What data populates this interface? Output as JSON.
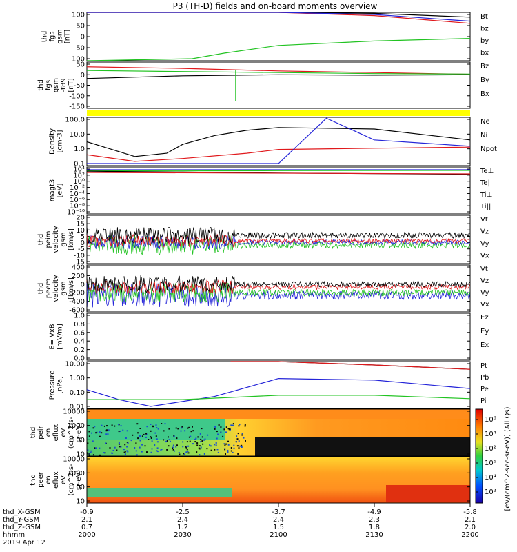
{
  "title": "P3 (TH-D) fields and on-board moments overview",
  "colors": {
    "black": "#000000",
    "red": "#e0191c",
    "green": "#22c322",
    "blue": "#2424d8",
    "magenta": "#b41e8c",
    "flag": "#ffff00",
    "panel_bg": "#ffffff"
  },
  "panels": [
    {
      "id": "fgs",
      "ylabel": [
        "thd",
        "fgs",
        "gsm",
        "[nT]"
      ],
      "ticks": [
        "100",
        "50",
        "0",
        "-50",
        "-100"
      ],
      "legend": [
        {
          "label": "Bt",
          "color": "black"
        },
        {
          "label": "bz",
          "color": "red"
        },
        {
          "label": "by",
          "color": "green"
        },
        {
          "label": "bx",
          "color": "blue"
        }
      ]
    },
    {
      "id": "fgs_t89",
      "ylabel": [
        "thd",
        "fgs",
        "gsm",
        "-t89",
        "[nT]"
      ],
      "ticks": [
        "50",
        "0",
        "-50",
        "-100",
        "-150"
      ],
      "legend": [
        {
          "label": "Bz",
          "color": "red"
        },
        {
          "label": "By",
          "color": "green"
        },
        {
          "label": "Bx",
          "color": "black"
        }
      ]
    },
    {
      "id": "density",
      "ylabel": [
        "Density",
        "[cm-3]"
      ],
      "ticks": [
        "100.0",
        "10.0",
        "1.0",
        "0.1"
      ],
      "legend": [
        {
          "label": "Ne",
          "color": "red"
        },
        {
          "label": "Ni",
          "color": "black"
        },
        {
          "label": "Npot",
          "color": "blue"
        }
      ]
    },
    {
      "id": "temperature",
      "ylabel": [
        "magt3",
        "[eV]"
      ],
      "ticks": [
        "10⁴",
        "10²",
        "10⁰",
        "10⁻²",
        "10⁻⁴",
        "10⁻⁶",
        "10⁻⁸",
        "10⁻¹⁰"
      ],
      "legend": [
        {
          "label": "Te⊥",
          "color": "red"
        },
        {
          "label": "Te||",
          "color": "black"
        },
        {
          "label": "Ti⊥",
          "color": "magenta"
        },
        {
          "label": "Ti||",
          "color": "green"
        }
      ]
    },
    {
      "id": "peim_velocity",
      "ylabel": [
        "thd",
        "peim",
        "velocity",
        "gsm",
        "[km/s]"
      ],
      "ticks": [
        "20",
        "15",
        "10",
        "5",
        "0",
        "-5",
        "-10",
        "-15"
      ],
      "legend": [
        {
          "label": "Vt",
          "color": "black"
        },
        {
          "label": "Vz",
          "color": "red"
        },
        {
          "label": "Vy",
          "color": "green"
        },
        {
          "label": "Vx",
          "color": "blue"
        }
      ]
    },
    {
      "id": "peem_velocity",
      "ylabel": [
        "thd",
        "peem",
        "velocity",
        "gsm",
        "[km/s]"
      ],
      "ticks": [
        "400",
        "200",
        "0",
        "-200",
        "-400",
        "-600"
      ],
      "legend": [
        {
          "label": "Vt",
          "color": "black"
        },
        {
          "label": "Vz",
          "color": "red"
        },
        {
          "label": "Vy",
          "color": "green"
        },
        {
          "label": "Vx",
          "color": "blue"
        }
      ]
    },
    {
      "id": "efield",
      "ylabel": [
        "E=-VxB",
        "[mV/m]"
      ],
      "ticks": [
        "1.0",
        "0.8",
        "0.6",
        "0.4",
        "0.2",
        "0.0"
      ],
      "legend": [
        {
          "label": "Ez",
          "color": "red"
        },
        {
          "label": "Ey",
          "color": "green"
        },
        {
          "label": "Ex",
          "color": "blue"
        }
      ]
    },
    {
      "id": "pressure",
      "ylabel": [
        "Pressure",
        "[nPa]"
      ],
      "ticks": [
        "10.00",
        "1.00",
        "0.10",
        "0.01"
      ],
      "legend": [
        {
          "label": "Pt",
          "color": "black"
        },
        {
          "label": "Pb",
          "color": "red"
        },
        {
          "label": "Pe",
          "color": "green"
        },
        {
          "label": "Pi",
          "color": "blue"
        }
      ]
    },
    {
      "id": "peir_spec",
      "ylabel": [
        "thd",
        "peir",
        "en",
        "eflux",
        "eV",
        "(cm^2-s-",
        "sr-eV)"
      ],
      "ticks": [
        "10000",
        "1000",
        "100",
        "10"
      ]
    },
    {
      "id": "peer_spec",
      "ylabel": [
        "thd",
        "peer",
        "en",
        "eflux",
        "eV",
        "(cm^2-s-",
        "sr-eV)"
      ],
      "ticks": [
        "10000",
        "1000",
        "100",
        "10"
      ]
    }
  ],
  "colorbar": {
    "ticks": [
      "10⁶",
      "10⁴",
      "10²",
      "10⁶",
      "10⁴",
      "10²"
    ],
    "label": "[eV/(cm^2-sec-sr-eV)] (All Qs)"
  },
  "x_axis": {
    "row_labels": [
      "thd_X-GSM",
      "thd_Y-GSM",
      "thd_Z-GSM",
      "hhmm",
      "2019 Apr 12"
    ],
    "columns": [
      {
        "x": "-0.9",
        "y": "2.1",
        "z": "0.7",
        "hhmm": "2000"
      },
      {
        "x": "-2.5",
        "y": "2.4",
        "z": "1.2",
        "hhmm": "2030"
      },
      {
        "x": "-3.7",
        "y": "2.4",
        "z": "1.5",
        "hhmm": "2100"
      },
      {
        "x": "-4.9",
        "y": "2.3",
        "z": "1.8",
        "hhmm": "2130"
      },
      {
        "x": "-5.8",
        "y": "2.1",
        "z": "2.0",
        "hhmm": "2200"
      }
    ]
  },
  "chart_data": {
    "type": "line",
    "title": "P3 (TH-D) fields and on-board moments overview",
    "x_unit": "hhmm",
    "x_ticks": [
      "2000",
      "2030",
      "2100",
      "2130",
      "2200"
    ],
    "series": [
      {
        "panel": "fgs",
        "name": "Bt",
        "x": [
          2000,
          2030,
          2043,
          2100,
          2130,
          2200
        ],
        "y": [
          150,
          140,
          135,
          118,
          105,
          88
        ]
      },
      {
        "panel": "fgs",
        "name": "bz",
        "x": [
          2000,
          2030,
          2100,
          2130,
          2200
        ],
        "y": [
          150,
          140,
          115,
          95,
          60
        ]
      },
      {
        "panel": "fgs",
        "name": "bx",
        "x": [
          2000,
          2100,
          2130,
          2200
        ],
        "y": [
          160,
          130,
          100,
          70
        ]
      },
      {
        "panel": "fgs",
        "name": "by",
        "x": [
          2000,
          2033,
          2043,
          2100,
          2130,
          2200
        ],
        "y": [
          -200,
          -100,
          -75,
          -40,
          -20,
          -8
        ]
      },
      {
        "panel": "fgs_t89",
        "name": "Bz",
        "x": [
          2000,
          2030,
          2100,
          2130,
          2200
        ],
        "y": [
          38,
          30,
          18,
          10,
          2
        ]
      },
      {
        "panel": "fgs_t89",
        "name": "By",
        "x": [
          2000,
          2030,
          2100,
          2130,
          2200
        ],
        "y": [
          20,
          15,
          10,
          5,
          3
        ]
      },
      {
        "panel": "fgs_t89",
        "name": "Bx",
        "x": [
          2000,
          2030,
          2100,
          2130,
          2200
        ],
        "y": [
          -18,
          -5,
          0,
          -2,
          0
        ]
      },
      {
        "panel": "density",
        "name": "Ni",
        "x": [
          2000,
          2015,
          2025,
          2030,
          2040,
          2050,
          2100,
          2130,
          2200
        ],
        "y": [
          3,
          0.3,
          0.5,
          2,
          8,
          18,
          28,
          22,
          4
        ]
      },
      {
        "panel": "density",
        "name": "Ne",
        "x": [
          2000,
          2015,
          2030,
          2050,
          2100,
          2130,
          2200
        ],
        "y": [
          0.4,
          0.14,
          0.22,
          0.5,
          0.9,
          1.1,
          1.3
        ]
      },
      {
        "panel": "density",
        "name": "Npot",
        "x": [
          2000,
          2030,
          2100,
          2115,
          2130,
          2200
        ],
        "y": [
          0.1,
          0.1,
          0.1,
          120,
          4,
          1.5
        ]
      },
      {
        "panel": "temperature",
        "name": "Ti||",
        "x": [
          2000,
          2030,
          2100,
          2200
        ],
        "y": [
          3000,
          2500,
          3000,
          3500
        ]
      },
      {
        "panel": "temperature",
        "name": "Te||",
        "x": [
          2000,
          2030,
          2100,
          2200
        ],
        "y": [
          2000,
          1000,
          500,
          200
        ]
      },
      {
        "panel": "pressure",
        "name": "Pt",
        "x": [
          2045,
          2100,
          2130,
          2200
        ],
        "y": [
          20,
          15,
          8,
          4
        ]
      },
      {
        "panel": "pressure",
        "name": "Pb",
        "x": [
          2045,
          2100,
          2130,
          2200
        ],
        "y": [
          20,
          15,
          8,
          4
        ]
      },
      {
        "panel": "pressure",
        "name": "Pi",
        "x": [
          2000,
          2010,
          2020,
          2040,
          2100,
          2130,
          2200
        ],
        "y": [
          0.15,
          0.03,
          0.01,
          0.05,
          0.9,
          0.7,
          0.18
        ]
      },
      {
        "panel": "pressure",
        "name": "Pe",
        "x": [
          2000,
          2030,
          2100,
          2130,
          2200
        ],
        "y": [
          0.03,
          0.03,
          0.06,
          0.06,
          0.035
        ]
      }
    ]
  }
}
